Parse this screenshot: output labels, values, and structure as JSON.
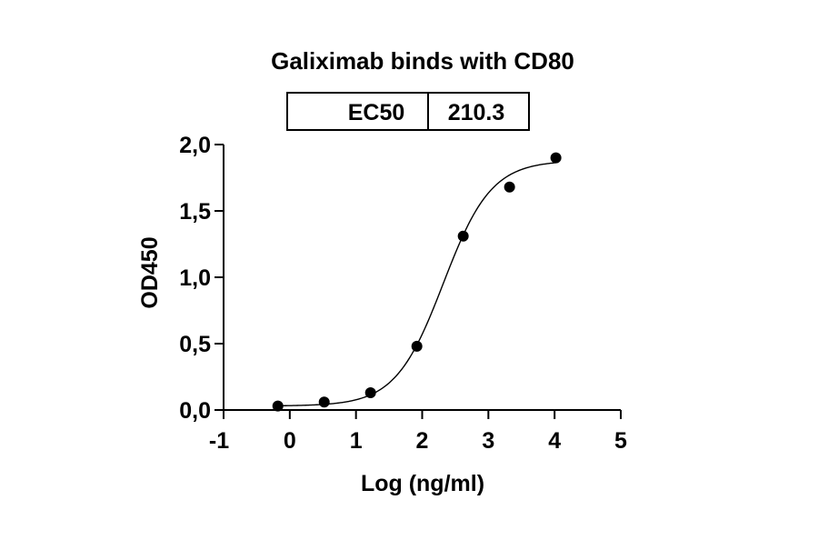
{
  "chart_data": {
    "type": "scatter",
    "title": "Galiximab binds with CD80",
    "xlabel": "Log (ng/ml)",
    "ylabel": "OD450",
    "xlim": [
      -1,
      5
    ],
    "ylim": [
      0,
      2
    ],
    "x_ticks": [
      -1,
      0,
      1,
      2,
      3,
      4,
      5
    ],
    "x_tick_labels": [
      "-1",
      "0",
      "1",
      "2",
      "3",
      "4",
      "5"
    ],
    "y_ticks": [
      0,
      0.5,
      1,
      1.5,
      2
    ],
    "y_tick_labels": [
      "0,0",
      "0,5",
      "1,0",
      "1,5",
      "2,0"
    ],
    "points": [
      {
        "x": -0.18,
        "y": 0.03
      },
      {
        "x": 0.52,
        "y": 0.06
      },
      {
        "x": 1.22,
        "y": 0.13
      },
      {
        "x": 1.92,
        "y": 0.48
      },
      {
        "x": 2.62,
        "y": 1.31
      },
      {
        "x": 3.32,
        "y": 1.68
      },
      {
        "x": 4.02,
        "y": 1.9
      }
    ],
    "fit": {
      "model": "4PL",
      "bottom": 0.03,
      "top": 1.88,
      "log_ec50": 2.32,
      "hill": 1.2,
      "x_range": [
        -0.18,
        4.02
      ]
    },
    "ec50_table": {
      "label": "EC50",
      "value": "210.3"
    }
  }
}
